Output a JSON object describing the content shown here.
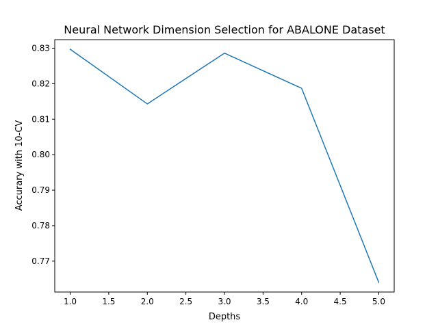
{
  "chart_data": {
    "type": "line",
    "title": "Neural Network Dimension Selection for ABALONE Dataset",
    "xlabel": "Depths",
    "ylabel": "Accurary with 10-CV",
    "x": [
      1.0,
      2.0,
      3.0,
      4.0,
      5.0
    ],
    "series": [
      {
        "values": [
          0.8297,
          0.8143,
          0.8286,
          0.8187,
          0.764
        ],
        "color": "#1f77b4"
      }
    ],
    "xlim": [
      0.8,
      5.2
    ],
    "ylim": [
      0.7613,
      0.8324
    ],
    "xticks": [
      1.0,
      1.5,
      2.0,
      2.5,
      3.0,
      3.5,
      4.0,
      4.5,
      5.0
    ],
    "xtick_labels": [
      "1.0",
      "1.5",
      "2.0",
      "2.5",
      "3.0",
      "3.5",
      "4.0",
      "4.5",
      "5.0"
    ],
    "yticks": [
      0.77,
      0.78,
      0.79,
      0.8,
      0.81,
      0.82,
      0.83
    ],
    "ytick_labels": [
      "0.77",
      "0.78",
      "0.79",
      "0.80",
      "0.81",
      "0.82",
      "0.83"
    ],
    "grid": false,
    "legend": false
  }
}
